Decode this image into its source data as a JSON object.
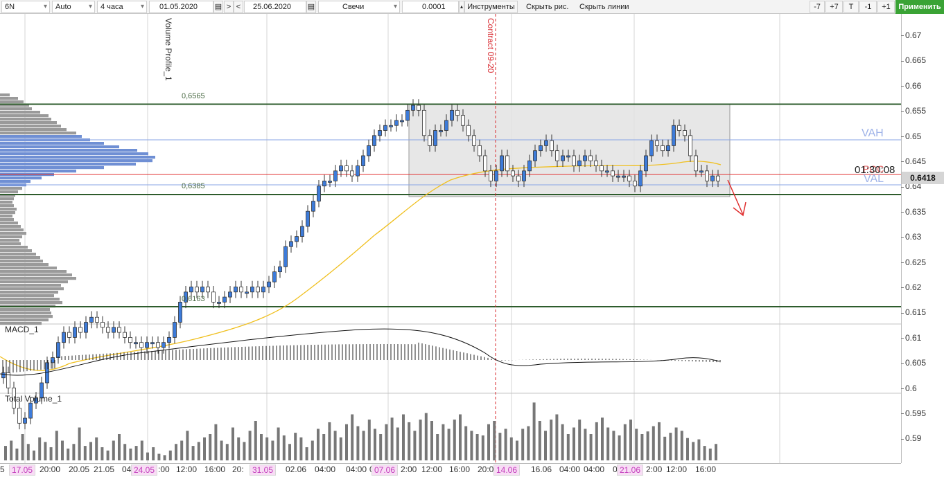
{
  "toolbar": {
    "symbol": "6N",
    "scale": "Auto",
    "timeframe": "4 часа",
    "date_from": "01.05.2020",
    "nav_next": ">",
    "nav_prev": "<",
    "date_to": "25.06.2020",
    "chart_type": "Свечи",
    "tick_size": "0.0001",
    "instruments": "Инструменты",
    "hide_drawings": "Скрыть рис.",
    "hide_lines": "Скрыть линии",
    "minus7": "-7",
    "plus7": "+7",
    "t": "T",
    "minus1": "-1",
    "plus1": "+1",
    "apply": "Применить",
    "apply_color": "#3aa335"
  },
  "chart": {
    "volume_profile_label": "Volume Profile_1",
    "contract_label": "Contract 09-20",
    "level_high": "0,6565",
    "level_low": "0,6385",
    "level_bottom": "0,6163",
    "vah": "VAH",
    "val": "VAL",
    "poc": "POC",
    "timer": "01:30:08",
    "last_price": "0.6418",
    "macd_title": "MACD_1",
    "volume_title": "Total Volume_1",
    "colors": {
      "up_candle": "#3d7bd9",
      "down_candle": "#ffffff",
      "ma": "#f0c020",
      "levels": "#2e5c2c",
      "poc_line": "#e03030",
      "profile": "#6f8fd4",
      "box": "#e3e3e3",
      "contract_line": "#d8282e"
    }
  },
  "price_axis": [
    "0.67",
    "0.665",
    "0.66",
    "0.655",
    "0.65",
    "0.645",
    "0.64",
    "0.635",
    "0.63",
    "0.625",
    "0.62",
    "0.615",
    "0.61",
    "0.605",
    "0.6",
    "0.595",
    "0.59"
  ],
  "time_axis": [
    {
      "label": "5",
      "hi": false
    },
    {
      "label": "17.05",
      "hi": true
    },
    {
      "label": "20:00",
      "hi": false
    },
    {
      "label": "20.05",
      "hi": false
    },
    {
      "label": "21.05",
      "hi": false
    },
    {
      "label": "04",
      "hi": false
    },
    {
      "label": "24.05",
      "hi": true
    },
    {
      "label": ":00",
      "hi": false
    },
    {
      "label": "12:00",
      "hi": false
    },
    {
      "label": "16:00",
      "hi": false
    },
    {
      "label": "20:",
      "hi": false
    },
    {
      "label": "31.05",
      "hi": true
    },
    {
      "label": "02.06",
      "hi": false
    },
    {
      "label": "04:00",
      "hi": false
    },
    {
      "label": "04:00",
      "hi": false
    },
    {
      "label": "0",
      "hi": false
    },
    {
      "label": "07.06",
      "hi": true
    },
    {
      "label": "2:00",
      "hi": false
    },
    {
      "label": "12:00",
      "hi": false
    },
    {
      "label": "16:00",
      "hi": false
    },
    {
      "label": "20:00",
      "hi": false
    },
    {
      "label": "14.06",
      "hi": true
    },
    {
      "label": "16.06",
      "hi": false
    },
    {
      "label": "04:00",
      "hi": false
    },
    {
      "label": "04:00",
      "hi": false
    },
    {
      "label": "0",
      "hi": false
    },
    {
      "label": "21.06",
      "hi": true
    },
    {
      "label": "2:00",
      "hi": false
    },
    {
      "label": "12:00",
      "hi": false
    },
    {
      "label": "16:00",
      "hi": false
    }
  ]
}
